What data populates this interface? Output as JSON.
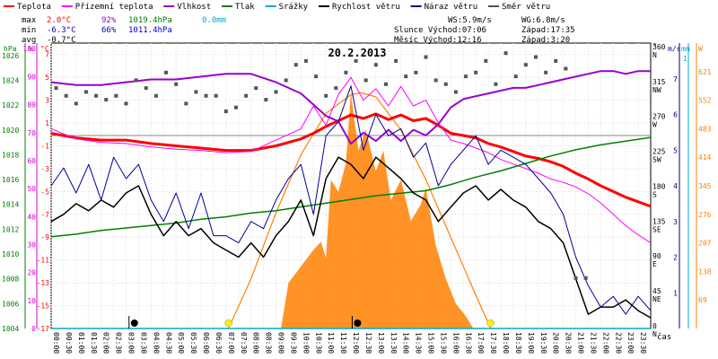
{
  "legend": {
    "items": [
      {
        "label": "Teplota",
        "color": "#ff0000"
      },
      {
        "label": "Přízemní teplota",
        "color": "#ff00ff"
      },
      {
        "label": "Vlhkost",
        "color": "#9900cc"
      },
      {
        "label": "Tlak",
        "color": "#008000"
      },
      {
        "label": "Srážky",
        "color": "#00aacc"
      },
      {
        "label": "Rychlost větru",
        "color": "#000000"
      },
      {
        "label": "Náraz větru",
        "color": "#000099"
      },
      {
        "label": "Směr větru",
        "color": "#555555"
      }
    ]
  },
  "stats": {
    "max": {
      "label": "max",
      "temp": "2.0°C",
      "hum": "92%",
      "press": "1019.4hPa",
      "rain": "0.0mm"
    },
    "min": {
      "label": "min",
      "temp": "-6.3°C",
      "hum": "66%",
      "press": "1011.4hPa"
    },
    "avg": {
      "label": "avg",
      "temp": "-0.7°C"
    }
  },
  "info": {
    "ws": "WS:5.9m/s",
    "wg": "WG:6.8m/s",
    "sun": "Slunce Východ:07:06",
    "sun_set": "Západ:17:35",
    "moon": "Měsíc Východ:12:16",
    "moon_set": "Západ:3:20"
  },
  "chart_data": {
    "type": "line",
    "title": "20.2.2013",
    "x_label": "čas",
    "x_ticks": [
      "00:00",
      "00:30",
      "01:00",
      "01:30",
      "02:00",
      "02:30",
      "03:00",
      "03:30",
      "04:00",
      "04:30",
      "05:00",
      "05:30",
      "06:00",
      "06:30",
      "07:00",
      "07:30",
      "08:00",
      "08:30",
      "09:00",
      "09:30",
      "10:00",
      "10:30",
      "11:00",
      "11:30",
      "12:00",
      "12:30",
      "13:00",
      "13:30",
      "14:00",
      "14:30",
      "15:00",
      "15:30",
      "16:00",
      "16:30",
      "17:00",
      "17:30",
      "18:00",
      "18:30",
      "19:00",
      "19:30",
      "20:00",
      "20:30",
      "21:00",
      "21:30",
      "22:00",
      "22:30",
      "23:00",
      "23:30"
    ],
    "axes": {
      "pressure": {
        "unit": "hPa",
        "range": [
          1004,
          1027
        ],
        "ticks": [
          1004,
          1006,
          1008,
          1010,
          1012,
          1014,
          1016,
          1018,
          1020,
          1022,
          1024,
          1026
        ]
      },
      "humidity": {
        "unit": "%",
        "range": [
          0,
          102
        ],
        "ticks": [
          0,
          10,
          20,
          30,
          40,
          50,
          60,
          70,
          80,
          90,
          100
        ]
      },
      "temperature": {
        "unit": "°C",
        "range": [
          -17,
          8
        ],
        "ticks": [
          -17,
          -15,
          -13,
          -11,
          -9,
          -7,
          -5,
          -3,
          -1,
          1,
          3,
          5,
          7
        ]
      },
      "direction": {
        "unit": "°",
        "range": [
          0,
          368
        ],
        "ticks": [
          {
            "v": 360,
            "l": "360",
            "d": "N"
          },
          {
            "v": 315,
            "l": "315",
            "d": "NW"
          },
          {
            "v": 270,
            "l": "270",
            "d": "W"
          },
          {
            "v": 225,
            "l": "225",
            "d": "SW"
          },
          {
            "v": 180,
            "l": "180",
            "d": "S"
          },
          {
            "v": 135,
            "l": "135",
            "d": "SE"
          },
          {
            "v": 90,
            "l": "90",
            "d": "E"
          },
          {
            "v": 45,
            "l": "45",
            "d": "NE"
          },
          {
            "v": 0,
            "l": "0",
            "d": "N"
          }
        ]
      },
      "wind": {
        "unit": "m/s",
        "range": [
          0,
          8
        ],
        "ticks": [
          1,
          2,
          3,
          4,
          5,
          6,
          7
        ]
      },
      "rain": {
        "unit": "mm",
        "range": [
          0,
          1
        ],
        "ticks": [
          1
        ]
      },
      "solar": {
        "unit": "W",
        "range": [
          0,
          690
        ],
        "ticks": [
          69,
          138,
          207,
          276,
          345,
          414,
          483,
          552,
          621
        ]
      }
    },
    "series": [
      {
        "name": "Teplota",
        "color": "#ff0000",
        "axis": "temperature",
        "x": [
          0,
          1,
          2,
          3,
          4,
          5,
          6,
          7,
          8,
          9,
          10,
          10.5,
          11,
          11.5,
          12,
          12.5,
          13,
          13.5,
          14,
          14.5,
          15,
          15.5,
          16,
          16.5,
          17,
          17.5,
          18,
          18.5,
          19,
          19.5,
          20,
          20.5,
          21,
          21.5,
          22,
          22.5,
          23,
          23.5,
          24
        ],
        "y": [
          0.1,
          -0.3,
          -0.5,
          -0.5,
          -0.8,
          -1.0,
          -1.2,
          -1.4,
          -1.4,
          -1.0,
          -0.4,
          0.1,
          0.7,
          1.2,
          1.7,
          1.4,
          1.8,
          1.3,
          1.7,
          1.2,
          1.4,
          0.8,
          0.1,
          -0.1,
          -0.3,
          -0.8,
          -1.1,
          -1.5,
          -1.9,
          -2.1,
          -2.4,
          -2.8,
          -3.4,
          -3.9,
          -4.5,
          -5.0,
          -5.5,
          -5.9,
          -6.3
        ]
      },
      {
        "name": "Přízemní teplota",
        "color": "#ff00ff",
        "axis": "temperature",
        "x": [
          0,
          1,
          2,
          3,
          4,
          5,
          6,
          7,
          8,
          9,
          10,
          10.5,
          11,
          11.5,
          12,
          12.5,
          13,
          13.5,
          14,
          14.5,
          15,
          15.5,
          16,
          16.5,
          17,
          17.5,
          18,
          18.5,
          19,
          19.5,
          20,
          20.5,
          21,
          21.5,
          22,
          22.5,
          23,
          23.5,
          24
        ],
        "y": [
          0.5,
          -0.4,
          -0.7,
          -0.8,
          -1.1,
          -1.3,
          -1.4,
          -1.6,
          -1.5,
          -0.5,
          0.5,
          2.5,
          0.8,
          3.5,
          5.0,
          3.0,
          4.0,
          2.5,
          4.2,
          2.5,
          3.0,
          1.0,
          -0.5,
          -0.8,
          -1.2,
          -1.6,
          -2.2,
          -2.6,
          -3.0,
          -3.4,
          -3.9,
          -4.2,
          -4.6,
          -5.2,
          -6.0,
          -7.0,
          -8.0,
          -8.8,
          -9.5
        ]
      },
      {
        "name": "Vlhkost",
        "color": "#9900cc",
        "axis": "humidity",
        "x": [
          0,
          1,
          2,
          3,
          4,
          5,
          6,
          7,
          8,
          9,
          10,
          10.5,
          11,
          11.5,
          12,
          12.5,
          13,
          13.5,
          14,
          14.5,
          15,
          15.5,
          16,
          16.5,
          17,
          17.5,
          18,
          18.5,
          19,
          19.5,
          20,
          20.5,
          21,
          21.5,
          22,
          22.5,
          23,
          23.5,
          24
        ],
        "y": [
          88,
          87,
          87,
          88,
          89,
          89,
          90,
          91,
          91,
          88,
          84,
          80,
          76,
          74,
          66,
          70,
          67,
          71,
          67,
          71,
          69,
          73,
          79,
          82,
          83,
          84,
          85,
          86,
          86,
          87,
          88,
          89,
          90,
          91,
          92,
          92,
          91,
          92,
          92
        ]
      },
      {
        "name": "Tlak",
        "color": "#008000",
        "axis": "pressure",
        "x": [
          0,
          1,
          2,
          3,
          4,
          5,
          6,
          7,
          8,
          9,
          10,
          11,
          12,
          13,
          14,
          15,
          16,
          17,
          18,
          19,
          20,
          21,
          22,
          23,
          24
        ],
        "y": [
          1011.4,
          1011.6,
          1011.9,
          1012.1,
          1012.3,
          1012.5,
          1012.8,
          1013.0,
          1013.3,
          1013.5,
          1013.8,
          1014.1,
          1014.4,
          1014.7,
          1014.9,
          1015.1,
          1015.6,
          1016.2,
          1016.7,
          1017.3,
          1017.9,
          1018.4,
          1018.8,
          1019.1,
          1019.4
        ]
      },
      {
        "name": "Rychlost větru",
        "color": "#000000",
        "axis": "wind",
        "x": [
          0,
          0.5,
          1,
          1.5,
          2,
          2.5,
          3,
          3.5,
          4,
          4.5,
          5,
          5.5,
          6,
          6.5,
          7,
          7.5,
          8,
          8.5,
          9,
          9.5,
          10,
          10.5,
          11,
          11.5,
          12,
          12.5,
          13,
          13.5,
          14,
          14.5,
          15,
          15.5,
          16,
          16.5,
          17,
          17.5,
          18,
          18.5,
          19,
          19.5,
          20,
          20.5,
          21,
          21.5,
          22,
          22.5,
          23,
          23.5,
          24
        ],
        "y": [
          3.0,
          3.2,
          3.5,
          3.3,
          3.6,
          3.4,
          3.8,
          4.0,
          3.2,
          2.6,
          3.0,
          2.6,
          2.8,
          2.4,
          2.2,
          2.0,
          2.4,
          2.0,
          2.6,
          3.0,
          3.6,
          2.6,
          4.2,
          4.8,
          4.6,
          4.2,
          4.8,
          4.5,
          4.2,
          3.8,
          3.6,
          3.0,
          3.4,
          3.8,
          4.0,
          3.6,
          3.9,
          3.6,
          3.4,
          3.0,
          2.8,
          2.4,
          1.4,
          0.4,
          0.6,
          0.6,
          0.8,
          0.5,
          0.3
        ]
      },
      {
        "name": "Náraz větru",
        "color": "#000099",
        "axis": "wind",
        "x": [
          0,
          0.5,
          1,
          1.5,
          2,
          2.5,
          3,
          3.5,
          4,
          4.5,
          5,
          5.5,
          6,
          6.5,
          7,
          7.5,
          8,
          8.5,
          9,
          9.5,
          10,
          10.5,
          11,
          11.5,
          12,
          12.5,
          13,
          13.5,
          14,
          14.5,
          15,
          15.5,
          16,
          16.5,
          17,
          17.5,
          18,
          18.5,
          19,
          19.5,
          20,
          20.5,
          21,
          21.5,
          22,
          22.5,
          23,
          23.5,
          24
        ],
        "y": [
          4.0,
          4.5,
          3.8,
          4.6,
          3.6,
          4.8,
          4.2,
          4.6,
          3.6,
          3.0,
          3.8,
          2.8,
          3.8,
          2.6,
          2.6,
          2.4,
          3.0,
          2.8,
          3.6,
          4.2,
          4.6,
          3.2,
          5.4,
          5.8,
          6.8,
          5.0,
          6.0,
          5.4,
          5.6,
          4.8,
          5.2,
          4.0,
          4.6,
          5.0,
          5.4,
          4.6,
          5.0,
          4.8,
          4.6,
          4.2,
          3.8,
          3.2,
          2.0,
          1.2,
          0.6,
          0.9,
          0.4,
          0.9,
          0.5
        ]
      },
      {
        "name": "Srážky",
        "color": "#00aacc",
        "axis": "rain",
        "x": [
          0,
          24
        ],
        "y": [
          0,
          0
        ]
      },
      {
        "name": "Směr větru",
        "color": "#555555",
        "axis": "direction",
        "type": "scatter",
        "x": [
          0.2,
          0.6,
          1.0,
          1.4,
          1.8,
          2.2,
          2.6,
          3.0,
          3.4,
          3.8,
          4.2,
          4.6,
          5.0,
          5.4,
          5.8,
          6.2,
          6.6,
          7.0,
          7.4,
          7.8,
          8.2,
          8.6,
          9.0,
          9.4,
          9.8,
          10.2,
          10.6,
          11.0,
          11.4,
          11.8,
          12.2,
          12.6,
          13.0,
          13.4,
          13.8,
          14.2,
          14.6,
          15.0,
          15.4,
          15.8,
          16.2,
          16.6,
          17.0,
          17.4,
          17.8,
          18.2,
          18.6,
          19.0,
          19.4,
          19.8,
          20.2,
          20.6,
          21.0,
          21.4
        ],
        "y": [
          310,
          300,
          290,
          305,
          300,
          295,
          300,
          290,
          320,
          310,
          300,
          330,
          315,
          290,
          305,
          300,
          300,
          280,
          285,
          300,
          310,
          295,
          305,
          320,
          340,
          345,
          325,
          300,
          310,
          330,
          345,
          320,
          340,
          315,
          345,
          325,
          330,
          350,
          320,
          315,
          305,
          325,
          330,
          345,
          315,
          355,
          325,
          340,
          350,
          330,
          345,
          335,
          65,
          65
        ]
      }
    ],
    "solar_radiation": {
      "name": "solar",
      "color": "#ff8000",
      "axis": "solar",
      "x": [
        9.2,
        9.5,
        10.0,
        10.5,
        10.8,
        11.0,
        11.2,
        11.5,
        11.8,
        12.0,
        12.3,
        12.6,
        13.0,
        13.3,
        13.6,
        14.0,
        14.4,
        14.8,
        15.0,
        15.4,
        15.8,
        16.2,
        16.6,
        16.9
      ],
      "y": [
        0,
        110,
        150,
        190,
        210,
        170,
        360,
        330,
        400,
        570,
        430,
        480,
        380,
        430,
        310,
        360,
        260,
        300,
        340,
        200,
        120,
        60,
        30,
        0
      ]
    },
    "solar_theoretical": {
      "name": "clear-sky",
      "color": "#ff8000",
      "axis": "solar",
      "x": [
        7.1,
        8,
        9,
        10,
        11,
        12,
        12.4,
        13,
        14,
        15,
        16,
        17,
        17.6
      ],
      "y": [
        0,
        120,
        280,
        420,
        520,
        565,
        570,
        560,
        480,
        360,
        220,
        80,
        0
      ]
    },
    "events": {
      "sunrise": 7.1,
      "sunset": 17.583,
      "moonrise": 12.267,
      "moonset": 3.333
    }
  }
}
